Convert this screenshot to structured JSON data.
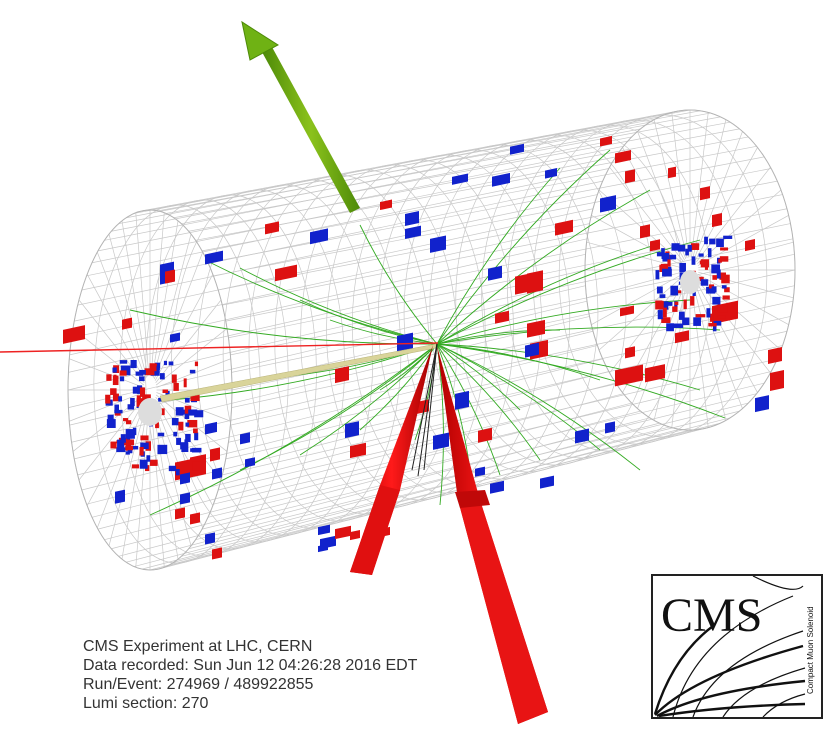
{
  "event_info": {
    "experiment": "CMS Experiment at LHC, CERN",
    "recorded": "Data recorded: Sun Jun 12 04:26:28 2016 EDT",
    "run_event": "Run/Event: 274969 / 489922855",
    "lumi": "Lumi section: 270"
  },
  "logo": {
    "text": "CMS",
    "subtitle": "Compact Muon Solenoid"
  },
  "colors": {
    "background": "#ffffff",
    "detector_grid": "#c8c8c8",
    "ecal_deposit": "#dd1111",
    "hcal_deposit": "#1122cc",
    "tracks": "#33aa22",
    "missing_energy_arrow": "#66aa11",
    "muon_track": "#ee2222",
    "jet_cone": "#dd0000",
    "info_text": "#333333"
  }
}
